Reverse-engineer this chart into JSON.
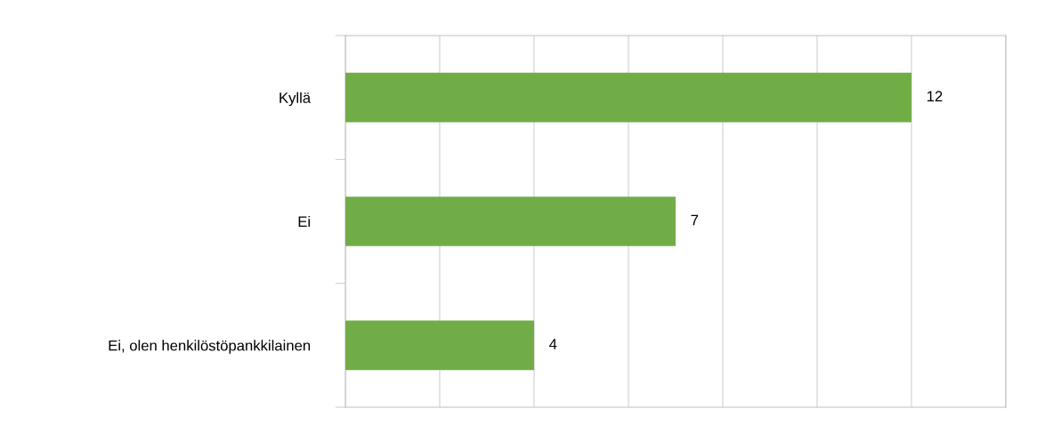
{
  "chart_data": {
    "type": "bar",
    "orientation": "horizontal",
    "categories": [
      "Kyllä",
      "Ei",
      "Ei, olen henkilöstöpankkilainen"
    ],
    "values": [
      12,
      7,
      4
    ],
    "color": "#70ad47",
    "xlim": [
      0,
      14
    ],
    "xticks": [
      {
        "value": 0,
        "label": null
      },
      {
        "value": 2,
        "label": null
      },
      {
        "value": 4,
        "label": null
      },
      {
        "value": 6,
        "label": null
      },
      {
        "value": 8,
        "label": null
      },
      {
        "value": 10,
        "label": null
      },
      {
        "value": 12,
        "label": null
      },
      {
        "value": 14,
        "label": null
      }
    ],
    "tick_labels": "y",
    "grid": "x",
    "data_labels": true,
    "legend": false
  }
}
